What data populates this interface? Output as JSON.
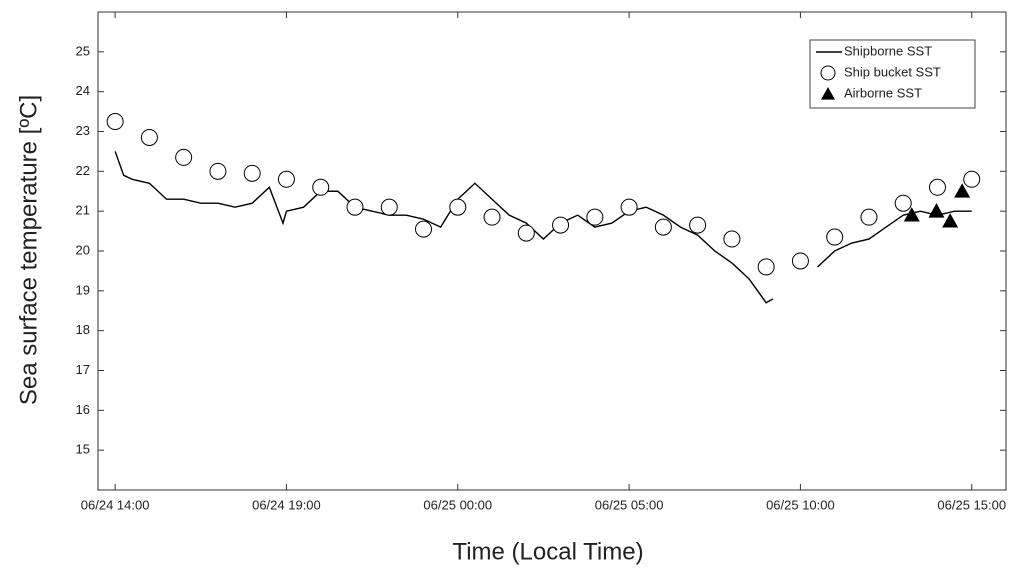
{
  "chart_data": {
    "type": "line",
    "xlabel": "Time (Local Time)",
    "ylabel": "Sea surface temperature [ºC]",
    "xlim": [
      -0.5,
      26
    ],
    "ylim": [
      14,
      26
    ],
    "xticks": [
      {
        "value": 0,
        "label": "06/24 14:00"
      },
      {
        "value": 5,
        "label": "06/24 19:00"
      },
      {
        "value": 10,
        "label": "06/25 00:00"
      },
      {
        "value": 15,
        "label": "06/25 05:00"
      },
      {
        "value": 20,
        "label": "06/25 10:00"
      },
      {
        "value": 25,
        "label": "06/25 15:00"
      }
    ],
    "yticks": [
      15,
      16,
      17,
      18,
      19,
      20,
      21,
      22,
      23,
      24,
      25
    ],
    "legend": "upper right",
    "series": [
      {
        "name": "Shipborne SST",
        "color": "#000000",
        "kind": "line",
        "x": [
          0,
          0.25,
          0.5,
          1,
          1.5,
          2,
          2.5,
          3,
          3.5,
          4,
          4.5,
          4.9,
          5,
          5.5,
          6,
          6.5,
          7,
          7.5,
          8,
          8.5,
          9,
          9.5,
          10,
          10.5,
          11,
          11.5,
          12,
          12.5,
          13,
          13.5,
          14,
          14.5,
          15,
          15.5,
          16,
          16.5,
          17,
          17.5,
          18,
          18.5,
          19,
          19.2,
          19.3,
          20.5,
          21,
          21.5,
          22,
          22.5,
          23,
          23.5,
          24,
          24.5,
          25
        ],
        "values": [
          22.5,
          21.9,
          21.8,
          21.7,
          21.3,
          21.3,
          21.2,
          21.2,
          21.1,
          21.2,
          21.6,
          20.7,
          21.0,
          21.1,
          21.5,
          21.5,
          21.1,
          21.0,
          20.9,
          20.9,
          20.8,
          20.6,
          21.3,
          21.7,
          21.3,
          20.9,
          20.7,
          20.3,
          20.7,
          20.9,
          20.6,
          20.7,
          21.0,
          21.1,
          20.9,
          20.6,
          20.4,
          20.0,
          19.7,
          19.3,
          18.7,
          18.8,
          null,
          19.6,
          20.0,
          20.2,
          20.3,
          20.6,
          20.9,
          21.0,
          20.9,
          21.0,
          21.0
        ]
      },
      {
        "name": "Ship bucket SST",
        "color": "#000000",
        "kind": "circle",
        "x": [
          0,
          1,
          2,
          3,
          4,
          5,
          6,
          7,
          8,
          9,
          10,
          11,
          12,
          13,
          14,
          15,
          16,
          17,
          18,
          19,
          20,
          21,
          22,
          23,
          24,
          25
        ],
        "values": [
          23.25,
          22.85,
          22.35,
          22.0,
          21.95,
          21.8,
          21.6,
          21.1,
          21.1,
          20.55,
          21.1,
          20.85,
          20.45,
          20.65,
          20.85,
          21.1,
          20.6,
          20.65,
          20.3,
          19.6,
          19.75,
          20.35,
          20.85,
          21.2,
          21.6,
          21.8
        ]
      },
      {
        "name": "Airborne SST",
        "color": "#000000",
        "kind": "triangle",
        "x": [
          23.25,
          23.97,
          24.37,
          24.72
        ],
        "values": [
          20.9,
          21.0,
          20.75,
          21.5
        ]
      }
    ]
  }
}
